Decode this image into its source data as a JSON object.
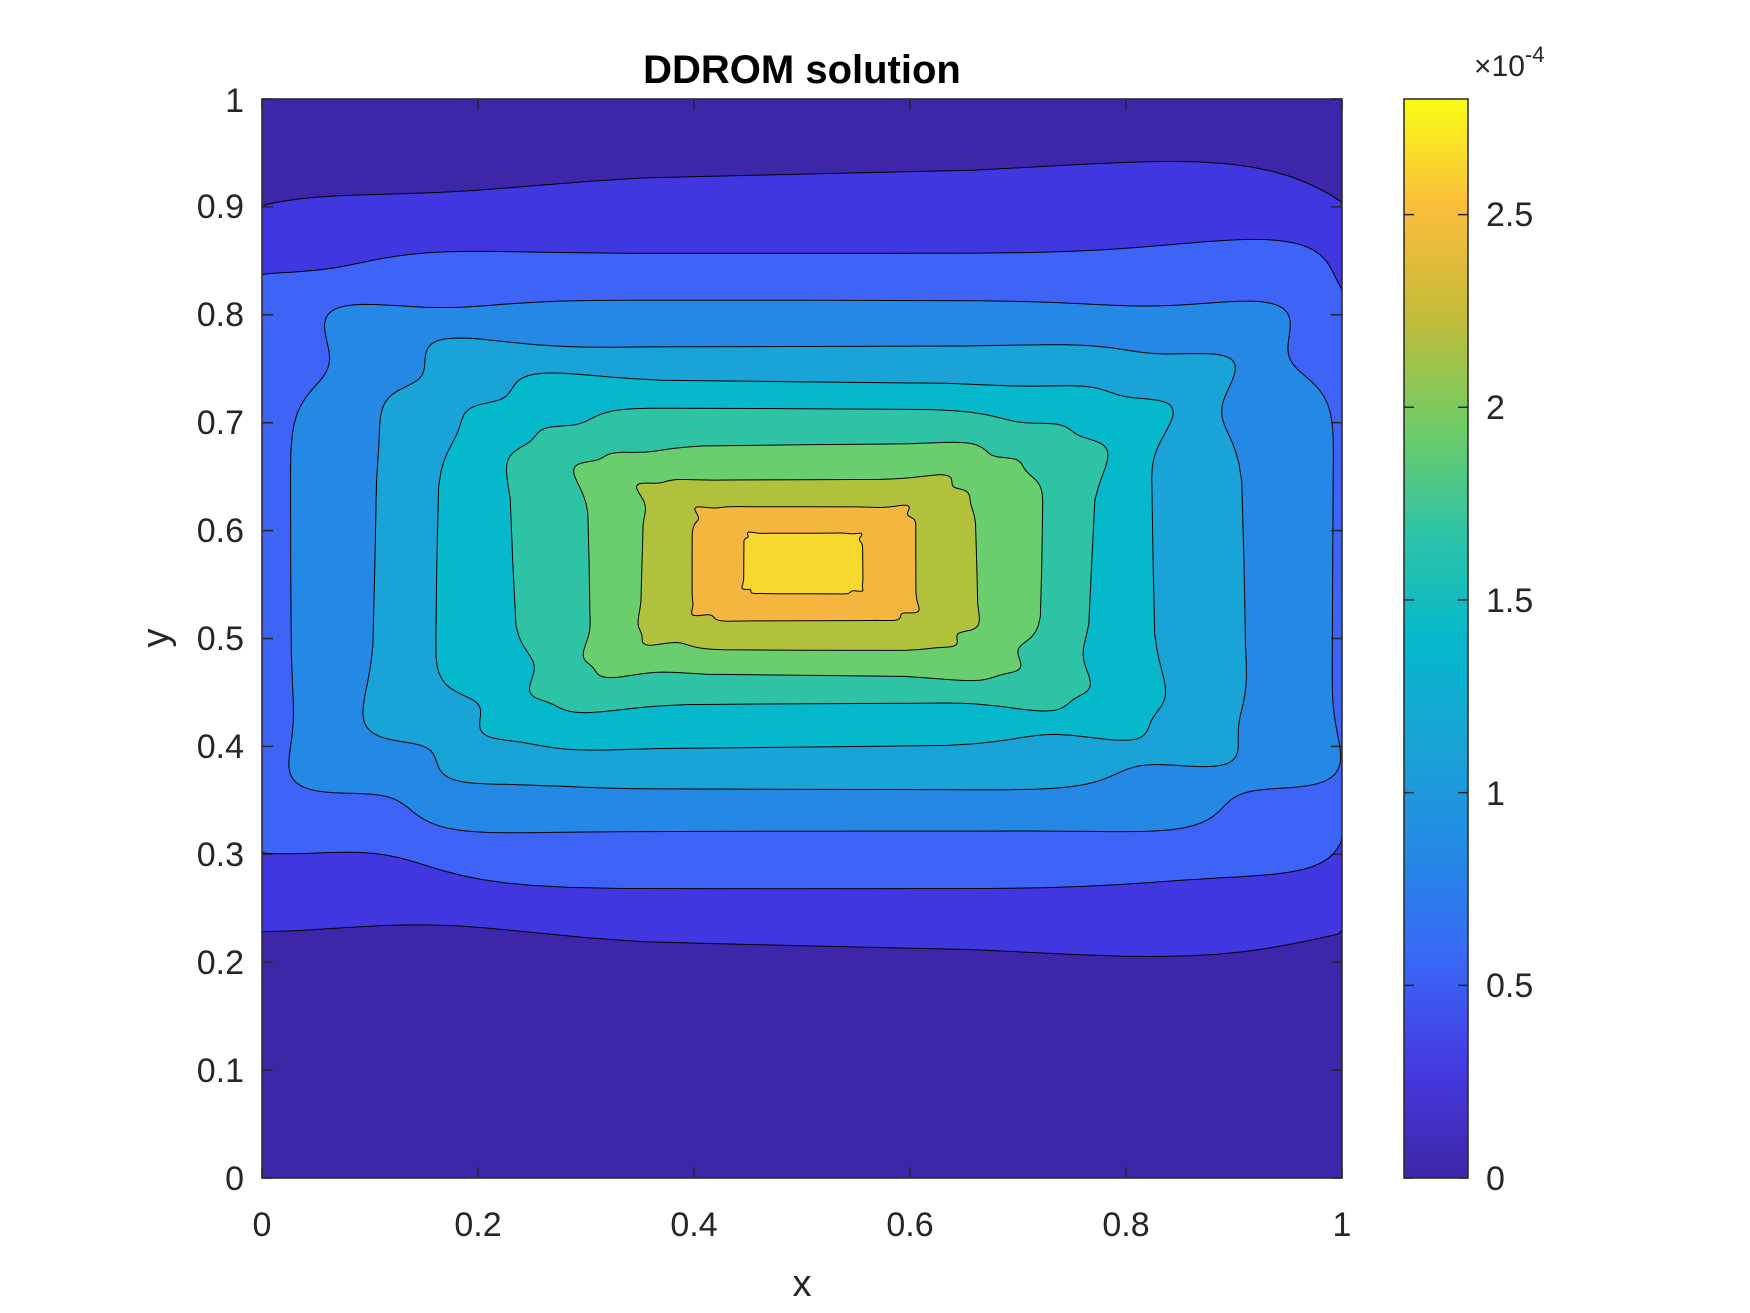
{
  "chart_data": {
    "type": "contour",
    "title": "DDROM solution",
    "xlabel": "x",
    "ylabel": "y",
    "xlim": [
      0,
      1
    ],
    "ylim": [
      0,
      1
    ],
    "x_ticks": [
      "0",
      "0.2",
      "0.4",
      "0.6",
      "0.8",
      "1"
    ],
    "y_ticks": [
      "0",
      "0.1",
      "0.2",
      "0.3",
      "0.4",
      "0.5",
      "0.6",
      "0.7",
      "0.8",
      "0.9",
      "1"
    ],
    "colorbar": {
      "range": [
        0,
        0.00028
      ],
      "exponent_label": "×10",
      "exponent_value": "-4",
      "ticks": [
        {
          "value": 0,
          "label": "0"
        },
        {
          "value": 0.5,
          "label": "0.5"
        },
        {
          "value": 1,
          "label": "1"
        },
        {
          "value": 1.5,
          "label": "1.5"
        },
        {
          "value": 2,
          "label": "2"
        },
        {
          "value": 2.5,
          "label": "2.5"
        }
      ],
      "colormap": "parula"
    },
    "contour_levels": [
      0,
      2.5e-05,
      5e-05,
      7.5e-05,
      0.0001,
      0.000125,
      0.00015,
      0.000175,
      0.0002,
      0.000225,
      0.00025
    ],
    "peak_value": 0.00028,
    "peak_location": [
      0.5,
      0.57
    ],
    "level_colors": [
      "#3e26a8",
      "#4037e0",
      "#3d64f7",
      "#2488e4",
      "#1aa3d6",
      "#05b8cc",
      "#2fc3a6",
      "#6acd6e",
      "#b2c13c",
      "#f4b63e",
      "#f6d82e"
    ]
  }
}
